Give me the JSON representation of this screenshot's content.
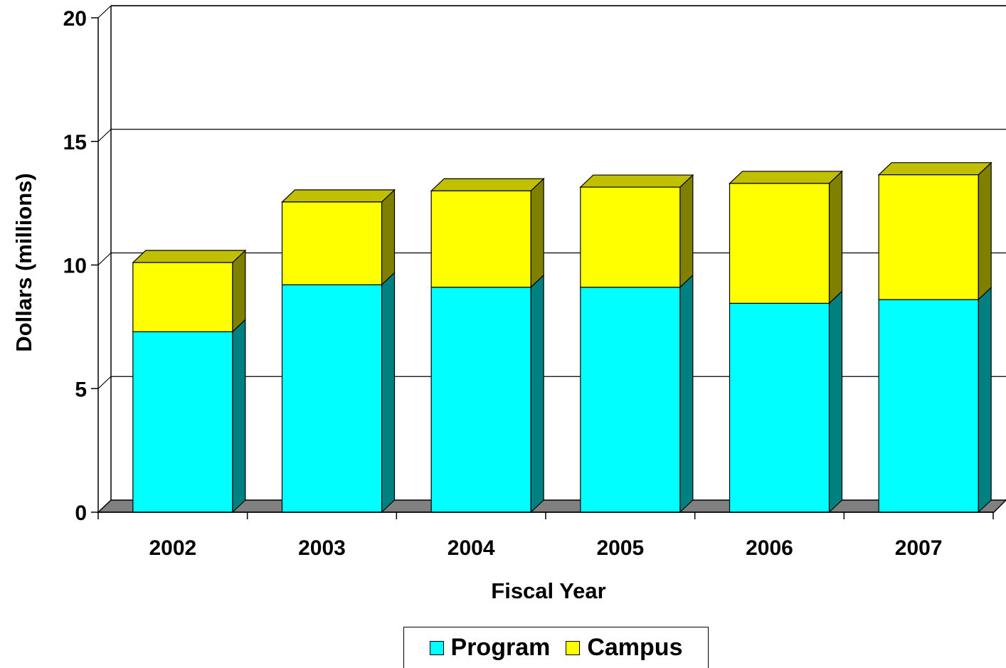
{
  "chart_data": {
    "type": "bar",
    "stacked": true,
    "three_d": true,
    "categories": [
      "2002",
      "2003",
      "2004",
      "2005",
      "2006",
      "2007"
    ],
    "series": [
      {
        "name": "Program",
        "values": [
          7.3,
          9.2,
          9.1,
          9.1,
          8.45,
          8.6
        ],
        "color": "#00ffff",
        "side_color": "#008080"
      },
      {
        "name": "Campus",
        "values": [
          2.8,
          3.35,
          3.9,
          4.05,
          4.85,
          5.05
        ],
        "color": "#ffff00",
        "side_color": "#808000"
      }
    ],
    "xlabel": "Fiscal Year",
    "ylabel": "Dollars (millions)",
    "ylim": [
      0,
      20
    ],
    "yticks": [
      "0",
      "5",
      "10",
      "15",
      "20"
    ],
    "grid": true,
    "legend_position": "bottom",
    "floor_color": "#808080"
  }
}
